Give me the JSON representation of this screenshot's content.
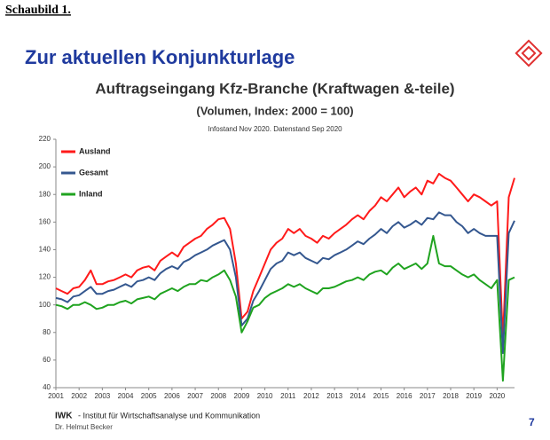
{
  "header": {
    "label": "Schaubild 1.",
    "slide_title": "Zur aktuellen Konjunkturlage"
  },
  "footer": {
    "org": "IWK",
    "org_name": "- Institut für Wirtschaftsanalyse und Kommunikation",
    "author": "Dr. Helmut Becker",
    "page": "7"
  },
  "chart_data": {
    "type": "line",
    "title": "Auftragseingang Kfz-Branche (Kraftwagen &-teile)",
    "subtitle": "(Volumen, Index: 2000 = 100)",
    "note": "Infostand Nov 2020. Datenstand Sep 2020",
    "x": [
      2001,
      2001.25,
      2001.5,
      2001.75,
      2002,
      2002.25,
      2002.5,
      2002.75,
      2003,
      2003.25,
      2003.5,
      2003.75,
      2004,
      2004.25,
      2004.5,
      2004.75,
      2005,
      2005.25,
      2005.5,
      2005.75,
      2006,
      2006.25,
      2006.5,
      2006.75,
      2007,
      2007.25,
      2007.5,
      2007.75,
      2008,
      2008.25,
      2008.5,
      2008.75,
      2009,
      2009.25,
      2009.5,
      2009.75,
      2010,
      2010.25,
      2010.5,
      2010.75,
      2011,
      2011.25,
      2011.5,
      2011.75,
      2012,
      2012.25,
      2012.5,
      2012.75,
      2013,
      2013.25,
      2013.5,
      2013.75,
      2014,
      2014.25,
      2014.5,
      2014.75,
      2015,
      2015.25,
      2015.5,
      2015.75,
      2016,
      2016.25,
      2016.5,
      2016.75,
      2017,
      2017.25,
      2017.5,
      2017.75,
      2018,
      2018.25,
      2018.5,
      2018.75,
      2019,
      2019.25,
      2019.5,
      2019.75,
      2020,
      2020.25,
      2020.5,
      2020.75
    ],
    "series": [
      {
        "name": "Ausland",
        "color": "#ff1a1a",
        "values": [
          112,
          110,
          108,
          112,
          113,
          118,
          125,
          115,
          115,
          117,
          118,
          120,
          122,
          120,
          125,
          127,
          128,
          125,
          132,
          135,
          138,
          135,
          142,
          145,
          148,
          150,
          155,
          158,
          162,
          163,
          155,
          130,
          90,
          95,
          110,
          120,
          130,
          140,
          145,
          148,
          155,
          152,
          155,
          150,
          148,
          145,
          150,
          148,
          152,
          155,
          158,
          162,
          165,
          162,
          168,
          172,
          178,
          175,
          180,
          185,
          178,
          182,
          185,
          180,
          190,
          188,
          195,
          192,
          190,
          185,
          180,
          175,
          180,
          178,
          175,
          172,
          175,
          75,
          178,
          192
        ]
      },
      {
        "name": "Gesamt",
        "color": "#34578f",
        "values": [
          105,
          104,
          102,
          106,
          107,
          110,
          113,
          108,
          108,
          110,
          111,
          113,
          115,
          113,
          117,
          118,
          120,
          118,
          123,
          126,
          128,
          126,
          131,
          133,
          136,
          138,
          140,
          143,
          145,
          147,
          140,
          120,
          85,
          90,
          103,
          110,
          118,
          126,
          130,
          132,
          138,
          136,
          138,
          134,
          132,
          130,
          134,
          133,
          136,
          138,
          140,
          143,
          146,
          144,
          148,
          151,
          155,
          152,
          157,
          160,
          156,
          158,
          161,
          158,
          163,
          162,
          167,
          165,
          165,
          160,
          157,
          152,
          155,
          152,
          150,
          150,
          150,
          65,
          152,
          161
        ]
      },
      {
        "name": "Inland",
        "color": "#1fa31f",
        "values": [
          100,
          99,
          97,
          100,
          100,
          102,
          100,
          97,
          98,
          100,
          100,
          102,
          103,
          101,
          104,
          105,
          106,
          104,
          108,
          110,
          112,
          110,
          113,
          115,
          115,
          118,
          117,
          120,
          122,
          125,
          118,
          106,
          80,
          88,
          98,
          100,
          105,
          108,
          110,
          112,
          115,
          113,
          115,
          112,
          110,
          108,
          112,
          112,
          113,
          115,
          117,
          118,
          120,
          118,
          122,
          124,
          125,
          122,
          127,
          130,
          126,
          128,
          130,
          126,
          130,
          150,
          130,
          128,
          128,
          125,
          122,
          120,
          122,
          118,
          115,
          112,
          118,
          45,
          118,
          120
        ]
      }
    ],
    "xlim": [
      2001,
      2020.75
    ],
    "xticks": [
      2001,
      2002,
      2003,
      2004,
      2005,
      2006,
      2007,
      2008,
      2009,
      2010,
      2011,
      2012,
      2013,
      2014,
      2015,
      2016,
      2017,
      2018,
      2019,
      2020
    ],
    "ylim": [
      40,
      220
    ],
    "yticks": [
      40,
      60,
      80,
      100,
      120,
      140,
      160,
      180,
      200,
      220
    ],
    "grid": false,
    "legend": "top-left"
  }
}
